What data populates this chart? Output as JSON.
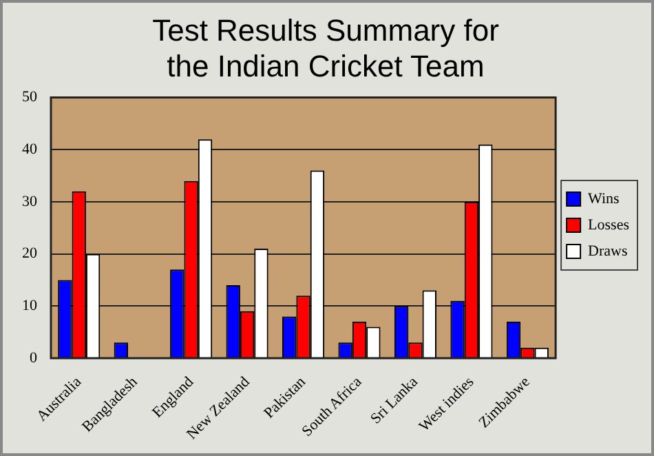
{
  "chart_data": {
    "type": "bar",
    "title": "Test Results Summary for the Indian Cricket Team",
    "categories": [
      "Australia",
      "Bangladesh",
      "England",
      "New Zealand",
      "Pakistan",
      "South Africa",
      "Sri Lanka",
      "West indies",
      "Zimbabwe"
    ],
    "series": [
      {
        "name": "Wins",
        "color": "#0000ff",
        "values": [
          15,
          3,
          17,
          14,
          8,
          3,
          10,
          11,
          7
        ]
      },
      {
        "name": "Losses",
        "color": "#ff0000",
        "values": [
          32,
          0,
          34,
          9,
          12,
          7,
          3,
          30,
          2
        ]
      },
      {
        "name": "Draws",
        "color": "#ffffff",
        "values": [
          20,
          0,
          42,
          21,
          36,
          6,
          13,
          41,
          2
        ]
      }
    ],
    "ylim": [
      0,
      50
    ],
    "yticks": [
      0,
      10,
      20,
      30,
      40,
      50
    ],
    "grid": "y",
    "legend": "right"
  }
}
